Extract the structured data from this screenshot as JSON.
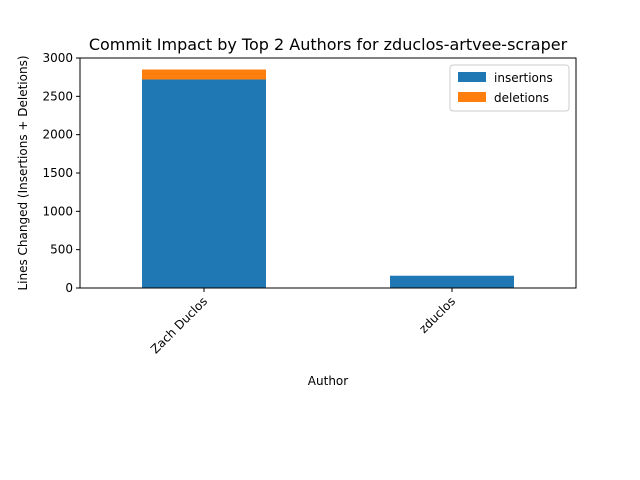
{
  "chart_data": {
    "type": "bar",
    "stacked": true,
    "title": "Commit Impact by Top 2 Authors for zduclos-artvee-scraper",
    "xlabel": "Author",
    "ylabel": "Lines Changed (Insertions + Deletions)",
    "categories": [
      "Zach Duclos",
      "zduclos"
    ],
    "series": [
      {
        "name": "insertions",
        "values": [
          2720,
          160
        ],
        "color": "#1f77b4"
      },
      {
        "name": "deletions",
        "values": [
          130,
          0
        ],
        "color": "#ff7f0e"
      }
    ],
    "ylim": [
      0,
      3000
    ],
    "yticks": [
      0,
      500,
      1000,
      1500,
      2000,
      2500,
      3000
    ],
    "legend_position": "top-right",
    "grid": false
  }
}
